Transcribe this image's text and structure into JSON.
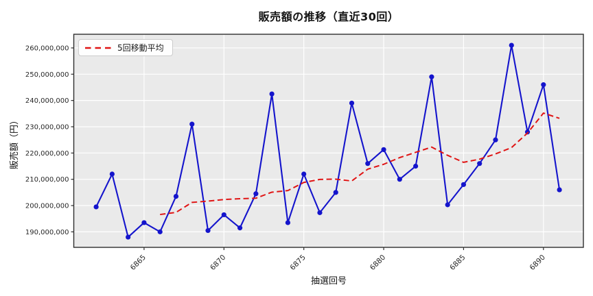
{
  "figure": {
    "title": "販売額の推移（直近30回）",
    "x_axis_label": "抽選回号",
    "y_axis_label": "販売額（円）",
    "legend": {
      "ma_label": "5回移動平均"
    }
  },
  "colors": {
    "figure_bg": "#ffffff",
    "plot_bg": "#eaeaea",
    "grid": "#ffffff",
    "spine": "#2e2e2e",
    "tick_text": "#262626",
    "sales_line": "#1414cc",
    "ma_line": "#e01414",
    "legend_border": "#cccccc"
  },
  "chart_data": {
    "type": "line",
    "title": "販売額の推移（直近30回）",
    "xlabel": "抽選回号",
    "ylabel": "販売額（円）",
    "x": [
      6862,
      6863,
      6864,
      6865,
      6866,
      6867,
      6868,
      6869,
      6870,
      6871,
      6872,
      6873,
      6874,
      6875,
      6876,
      6877,
      6878,
      6879,
      6880,
      6881,
      6882,
      6883,
      6884,
      6885,
      6886,
      6887,
      6888,
      6889,
      6890,
      6891
    ],
    "series": [
      {
        "name": "販売額",
        "color": "#1414cc",
        "style": "solid",
        "marker": "circle",
        "values": [
          199500000,
          212000000,
          188000000,
          193500000,
          190000000,
          203500000,
          231000000,
          190500000,
          196500000,
          191500000,
          204500000,
          242500000,
          193500000,
          212000000,
          197300000,
          205000000,
          239000000,
          216000000,
          221300000,
          210000000,
          215000000,
          249000000,
          200300000,
          208000000,
          216000000,
          225000000,
          261000000,
          228000000,
          246000000,
          206000000
        ]
      },
      {
        "name": "5回移動平均",
        "color": "#e01414",
        "style": "dashed",
        "marker": "none",
        "values": [
          null,
          null,
          null,
          null,
          196600000,
          197400000,
          201200000,
          201700000,
          202300000,
          202600000,
          202800000,
          205100000,
          205700000,
          208800000,
          209960000,
          210060000,
          209360000,
          213860000,
          215720000,
          218260000,
          220260000,
          222260000,
          219120000,
          216460000,
          217660000,
          219660000,
          222060000,
          227600000,
          235200000,
          233200000
        ]
      }
    ],
    "xlim": [
      6860.6,
      6892.5
    ],
    "ylim": [
      184100000,
      265200000
    ],
    "x_ticks": [
      6865,
      6870,
      6875,
      6880,
      6885,
      6890
    ],
    "y_ticks": [
      190000000,
      200000000,
      210000000,
      220000000,
      230000000,
      240000000,
      250000000,
      260000000
    ],
    "grid": true,
    "legend_position": "upper left"
  }
}
